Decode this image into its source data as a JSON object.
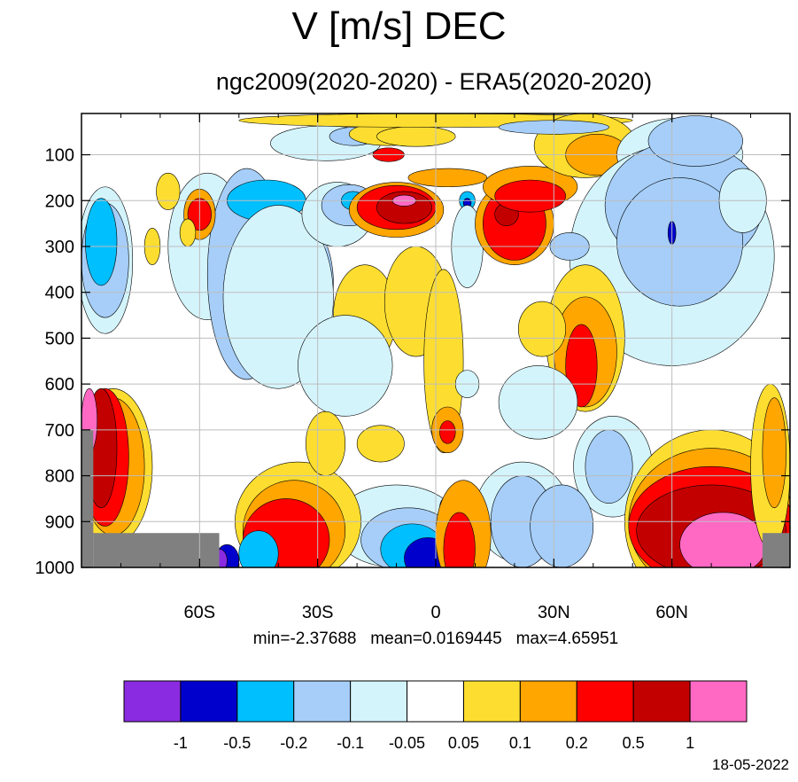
{
  "title": "V [m/s] DEC",
  "subtitle": "ngc2009(2020-2020) - ERA5(2020-2020)",
  "stats": "min=-2.37688   mean=0.0169445   max=4.65951",
  "date": "18-05-2022",
  "chart_data": {
    "type": "heatmap",
    "title": "V [m/s] DEC",
    "subtitle": "ngc2009(2020-2020) - ERA5(2020-2020)",
    "x_ticks": [
      "60S",
      "30S",
      "0",
      "30N",
      "60N"
    ],
    "x_tick_values": [
      -60,
      -30,
      0,
      30,
      60
    ],
    "y_ticks": [
      "100",
      "200",
      "300",
      "400",
      "500",
      "600",
      "700",
      "800",
      "900",
      "1000"
    ],
    "y_tick_values": [
      100,
      200,
      300,
      400,
      500,
      600,
      700,
      800,
      900,
      1000
    ],
    "xlim": [
      -90,
      90
    ],
    "ylim": [
      1000,
      10
    ],
    "grid": true,
    "colorbar_levels": [
      "-1",
      "-0.5",
      "-0.2",
      "-0.1",
      "-0.05",
      "0.05",
      "0.1",
      "0.2",
      "0.5",
      "1"
    ],
    "colorbar_colors": [
      "#8A2BE2",
      "#0000CD",
      "#00BFFF",
      "#A6CEF8",
      "#D4F4FC",
      "#FFFFFF",
      "#FDDE30",
      "#FFA600",
      "#FF0000",
      "#C30000",
      "#FF69C4"
    ],
    "missing_color": "#808080",
    "blobs": [
      {
        "lon": -84,
        "p": 330,
        "rx": 7,
        "ry": 160,
        "level": 4
      },
      {
        "lon": -84,
        "p": 330,
        "rx": 6,
        "ry": 125,
        "level": 3
      },
      {
        "lon": -85,
        "p": 290,
        "rx": 4,
        "ry": 95,
        "level": 2
      },
      {
        "lon": -58,
        "p": 300,
        "rx": 10,
        "ry": 160,
        "level": 4
      },
      {
        "lon": -48,
        "p": 360,
        "rx": 10,
        "ry": 230,
        "level": 3
      },
      {
        "lon": -36,
        "p": 380,
        "rx": 10,
        "ry": 150,
        "level": 3
      },
      {
        "lon": -43,
        "p": 200,
        "rx": 10,
        "ry": 45,
        "level": 2
      },
      {
        "lon": -40,
        "p": 410,
        "rx": 14,
        "ry": 200,
        "level": 4
      },
      {
        "lon": -25,
        "p": 230,
        "rx": 9,
        "ry": 70,
        "level": 4
      },
      {
        "lon": -22,
        "p": 210,
        "rx": 7,
        "ry": 45,
        "level": 3
      },
      {
        "lon": -21,
        "p": 200,
        "rx": 3,
        "ry": 20,
        "level": 2
      },
      {
        "lon": -28,
        "p": 75,
        "rx": 14,
        "ry": 38,
        "level": 4
      },
      {
        "lon": -21,
        "p": 60,
        "rx": 6,
        "ry": 20,
        "level": 3
      },
      {
        "lon": -60,
        "p": 230,
        "rx": 4,
        "ry": 55,
        "level": 7
      },
      {
        "lon": -60,
        "p": 230,
        "rx": 3,
        "ry": 35,
        "level": 8
      },
      {
        "lon": -68,
        "p": 180,
        "rx": 3,
        "ry": 40,
        "level": 6
      },
      {
        "lon": -12,
        "p": 55,
        "rx": 10,
        "ry": 25,
        "level": 6
      },
      {
        "lon": -5,
        "p": 60,
        "rx": 10,
        "ry": 22,
        "level": 6
      },
      {
        "lon": 0,
        "p": 25,
        "rx": 50,
        "ry": 15,
        "level": 6
      },
      {
        "lon": -12,
        "p": 100,
        "rx": 4,
        "ry": 15,
        "level": 8
      },
      {
        "lon": -10,
        "p": 220,
        "rx": 12,
        "ry": 60,
        "level": 7
      },
      {
        "lon": -10,
        "p": 215,
        "rx": 10,
        "ry": 48,
        "level": 8
      },
      {
        "lon": -8,
        "p": 215,
        "rx": 7,
        "ry": 35,
        "level": 9
      },
      {
        "lon": -8,
        "p": 200,
        "rx": 3,
        "ry": 12,
        "level": 10
      },
      {
        "lon": 3,
        "p": 150,
        "rx": 10,
        "ry": 20,
        "level": 7
      },
      {
        "lon": 8,
        "p": 200,
        "rx": 2,
        "ry": 20,
        "level": 2
      },
      {
        "lon": 8,
        "p": 205,
        "rx": 1,
        "ry": 10,
        "level": 1
      },
      {
        "lon": 8,
        "p": 300,
        "rx": 4,
        "ry": 90,
        "level": 4
      },
      {
        "lon": 20,
        "p": 250,
        "rx": 10,
        "ry": 90,
        "level": 7
      },
      {
        "lon": 20,
        "p": 250,
        "rx": 8,
        "ry": 80,
        "level": 8
      },
      {
        "lon": 18,
        "p": 230,
        "rx": 3,
        "ry": 25,
        "level": 9
      },
      {
        "lon": 24,
        "p": 170,
        "rx": 12,
        "ry": 45,
        "level": 7
      },
      {
        "lon": 24,
        "p": 190,
        "rx": 9,
        "ry": 35,
        "level": 8
      },
      {
        "lon": 38,
        "p": 80,
        "rx": 13,
        "ry": 70,
        "level": 6
      },
      {
        "lon": 41,
        "p": 100,
        "rx": 8,
        "ry": 45,
        "level": 7
      },
      {
        "lon": 30,
        "p": 40,
        "rx": 14,
        "ry": 15,
        "level": 3
      },
      {
        "lon": 62,
        "p": 100,
        "rx": 16,
        "ry": 80,
        "level": 4
      },
      {
        "lon": 60,
        "p": 320,
        "rx": 26,
        "ry": 240,
        "level": 4
      },
      {
        "lon": 63,
        "p": 210,
        "rx": 20,
        "ry": 140,
        "level": 3
      },
      {
        "lon": 62,
        "p": 290,
        "rx": 16,
        "ry": 140,
        "level": 3
      },
      {
        "lon": 66,
        "p": 70,
        "rx": 12,
        "ry": 55,
        "level": 3
      },
      {
        "lon": 60,
        "p": 270,
        "rx": 1,
        "ry": 25,
        "level": 1
      },
      {
        "lon": 78,
        "p": 200,
        "rx": 6,
        "ry": 70,
        "level": 4
      },
      {
        "lon": 34,
        "p": 300,
        "rx": 5,
        "ry": 30,
        "level": 3
      },
      {
        "lon": 38,
        "p": 500,
        "rx": 10,
        "ry": 160,
        "level": 6
      },
      {
        "lon": 38,
        "p": 530,
        "rx": 8,
        "ry": 120,
        "level": 7
      },
      {
        "lon": 37,
        "p": 560,
        "rx": 4,
        "ry": 90,
        "level": 8
      },
      {
        "lon": 27,
        "p": 480,
        "rx": 6,
        "ry": 60,
        "level": 6
      },
      {
        "lon": -18,
        "p": 450,
        "rx": 8,
        "ry": 110,
        "level": 6
      },
      {
        "lon": -5,
        "p": 420,
        "rx": 8,
        "ry": 120,
        "level": 6
      },
      {
        "lon": 2,
        "p": 550,
        "rx": 5,
        "ry": 200,
        "level": 6
      },
      {
        "lon": 3,
        "p": 700,
        "rx": 4,
        "ry": 50,
        "level": 7
      },
      {
        "lon": 3,
        "p": 705,
        "rx": 2,
        "ry": 25,
        "level": 8
      },
      {
        "lon": 26,
        "p": 640,
        "rx": 10,
        "ry": 80,
        "level": 4
      },
      {
        "lon": 22,
        "p": 880,
        "rx": 12,
        "ry": 110,
        "level": 4
      },
      {
        "lon": 22,
        "p": 900,
        "rx": 8,
        "ry": 100,
        "level": 3
      },
      {
        "lon": 45,
        "p": 780,
        "rx": 10,
        "ry": 110,
        "level": 4
      },
      {
        "lon": 44,
        "p": 780,
        "rx": 6,
        "ry": 80,
        "level": 3
      },
      {
        "lon": 32,
        "p": 910,
        "rx": 8,
        "ry": 90,
        "level": 3
      },
      {
        "lon": 8,
        "p": 600,
        "rx": 3,
        "ry": 30,
        "level": 4
      },
      {
        "lon": -23,
        "p": 560,
        "rx": 12,
        "ry": 110,
        "level": 4
      },
      {
        "lon": -10,
        "p": 910,
        "rx": 16,
        "ry": 90,
        "level": 4
      },
      {
        "lon": -7,
        "p": 940,
        "rx": 12,
        "ry": 70,
        "level": 3
      },
      {
        "lon": -6,
        "p": 960,
        "rx": 8,
        "ry": 55,
        "level": 2
      },
      {
        "lon": -2,
        "p": 980,
        "rx": 6,
        "ry": 45,
        "level": 1
      },
      {
        "lon": 3,
        "p": 870,
        "rx": 2,
        "ry": 25,
        "level": 1
      },
      {
        "lon": -35,
        "p": 900,
        "rx": 16,
        "ry": 130,
        "level": 6
      },
      {
        "lon": -36,
        "p": 920,
        "rx": 13,
        "ry": 110,
        "level": 7
      },
      {
        "lon": -38,
        "p": 940,
        "rx": 11,
        "ry": 90,
        "level": 8
      },
      {
        "lon": -45,
        "p": 970,
        "rx": 5,
        "ry": 50,
        "level": 2
      },
      {
        "lon": -53,
        "p": 985,
        "rx": 3,
        "ry": 35,
        "level": 1
      },
      {
        "lon": -55,
        "p": 985,
        "rx": 2,
        "ry": 25,
        "level": 0
      },
      {
        "lon": 7,
        "p": 930,
        "rx": 7,
        "ry": 120,
        "level": 7
      },
      {
        "lon": 6,
        "p": 960,
        "rx": 4,
        "ry": 80,
        "level": 8
      },
      {
        "lon": -28,
        "p": 730,
        "rx": 5,
        "ry": 70,
        "level": 6
      },
      {
        "lon": -14,
        "p": 730,
        "rx": 6,
        "ry": 40,
        "level": 6
      },
      {
        "lon": 70,
        "p": 900,
        "rx": 22,
        "ry": 200,
        "level": 6
      },
      {
        "lon": 70,
        "p": 900,
        "rx": 21,
        "ry": 160,
        "level": 7
      },
      {
        "lon": 70,
        "p": 910,
        "rx": 21,
        "ry": 130,
        "level": 8
      },
      {
        "lon": 70,
        "p": 920,
        "rx": 19,
        "ry": 100,
        "level": 9
      },
      {
        "lon": 73,
        "p": 950,
        "rx": 11,
        "ry": 70,
        "level": 10
      },
      {
        "lon": 85,
        "p": 780,
        "rx": 5,
        "ry": 180,
        "level": 6
      },
      {
        "lon": 86,
        "p": 750,
        "rx": 3,
        "ry": 120,
        "level": 7
      },
      {
        "lon": -82,
        "p": 780,
        "rx": 10,
        "ry": 170,
        "level": 6
      },
      {
        "lon": -82,
        "p": 780,
        "rx": 8,
        "ry": 150,
        "level": 7
      },
      {
        "lon": -84,
        "p": 760,
        "rx": 6,
        "ry": 150,
        "level": 8
      },
      {
        "lon": -85,
        "p": 740,
        "rx": 4,
        "ry": 130,
        "level": 9
      },
      {
        "lon": -88,
        "p": 680,
        "rx": 2,
        "ry": 70,
        "level": 10
      },
      {
        "lon": -63,
        "p": 270,
        "rx": 2,
        "ry": 30,
        "level": 6
      },
      {
        "lon": -72,
        "p": 300,
        "rx": 2,
        "ry": 40,
        "level": 6
      }
    ],
    "missing_regions": [
      {
        "lon0": -90,
        "lon1": -87,
        "p0": 700,
        "p1": 1000
      },
      {
        "lon0": -87,
        "lon1": -55,
        "p0": 925,
        "p1": 1000
      },
      {
        "lon0": 83,
        "lon1": 90,
        "p0": 925,
        "p1": 1000
      }
    ]
  }
}
